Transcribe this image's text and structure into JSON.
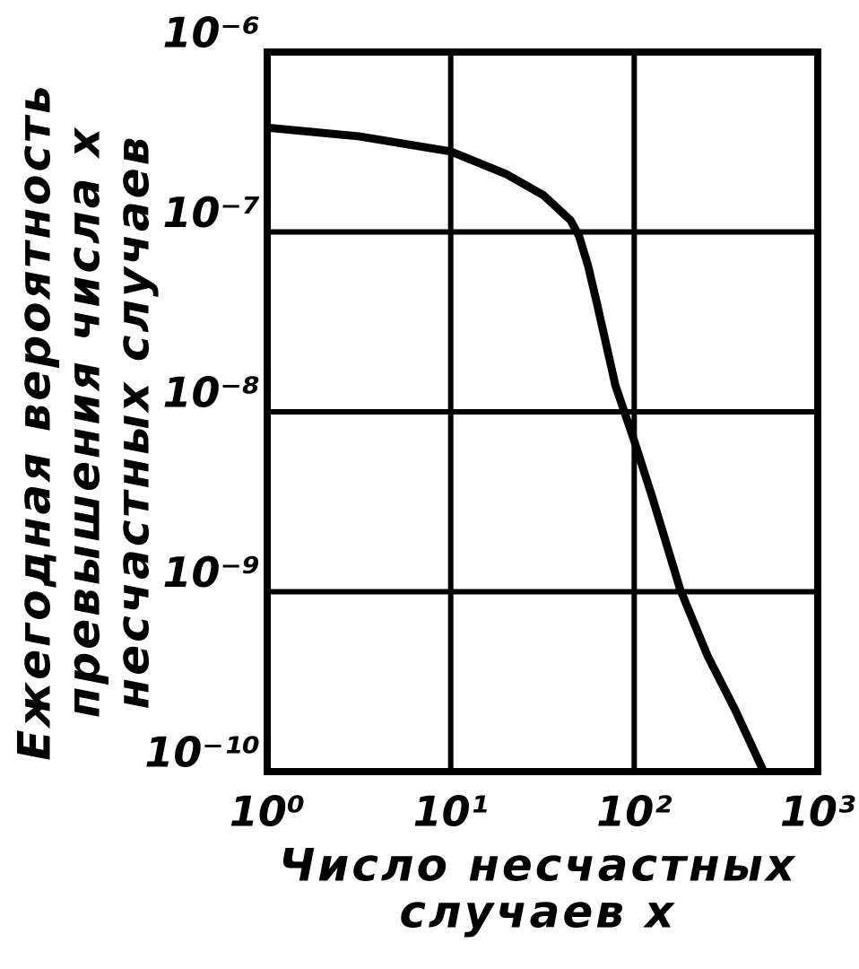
{
  "chart_data": {
    "type": "line",
    "y_label": [
      "Ежегодная вероятность",
      "превышения числа x",
      "несчастных случаев"
    ],
    "x_label": [
      "Число несчастных",
      "случаев x"
    ],
    "xscale": "log",
    "yscale": "log",
    "grid": true,
    "xlim": [
      1,
      1000
    ],
    "ylim": [
      1e-10,
      1e-06
    ],
    "xticks": [
      {
        "value": 1,
        "label": "10⁰"
      },
      {
        "value": 10,
        "label": "10¹"
      },
      {
        "value": 100,
        "label": "10²"
      },
      {
        "value": 1000,
        "label": "10³"
      }
    ],
    "yticks": [
      {
        "value": 1e-06,
        "label": "10⁻⁶"
      },
      {
        "value": 1e-07,
        "label": "10⁻⁷"
      },
      {
        "value": 1e-08,
        "label": "10⁻⁸"
      },
      {
        "value": 1e-09,
        "label": "10⁻⁹"
      },
      {
        "value": 1e-10,
        "label": "10⁻¹⁰"
      }
    ],
    "color": "#000000",
    "x": [
      1,
      3.16,
      10,
      20,
      32,
      45,
      50,
      56,
      63,
      79,
      100,
      126,
      178,
      251,
      355,
      501
    ],
    "values": [
      3.8e-07,
      3.4e-07,
      2.8e-07,
      2.1e-07,
      1.6e-07,
      1.16e-07,
      9.5e-08,
      6.5e-08,
      3.9e-08,
      1.4e-08,
      6.9e-09,
      3.3e-09,
      1.03e-09,
      4.4e-10,
      2.2e-10,
      1.03e-10
    ]
  }
}
